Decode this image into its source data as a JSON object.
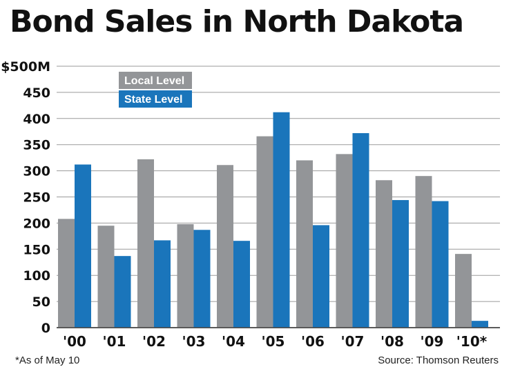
{
  "title": "Bond Sales in North Dakota",
  "footnote": "*As of May 10",
  "source": "Source: Thomson Reuters",
  "chart_data": {
    "type": "bar",
    "categories": [
      "'00",
      "'01",
      "'02",
      "'03",
      "'04",
      "'05",
      "'06",
      "'07",
      "'08",
      "'09",
      "'10*"
    ],
    "series": [
      {
        "name": "Local Level",
        "color": "#939598",
        "values": [
          208,
          195,
          322,
          198,
          311,
          366,
          320,
          332,
          282,
          290,
          141
        ]
      },
      {
        "name": "State Level",
        "color": "#1a75bb",
        "values": [
          312,
          137,
          167,
          187,
          166,
          412,
          196,
          372,
          244,
          242,
          13
        ]
      }
    ],
    "yticks": [
      "0",
      "50",
      "100",
      "150",
      "200",
      "250",
      "300",
      "350",
      "400",
      "450",
      "$500M"
    ],
    "ylim": [
      0,
      500
    ],
    "grid": true,
    "legend": "top-left"
  }
}
